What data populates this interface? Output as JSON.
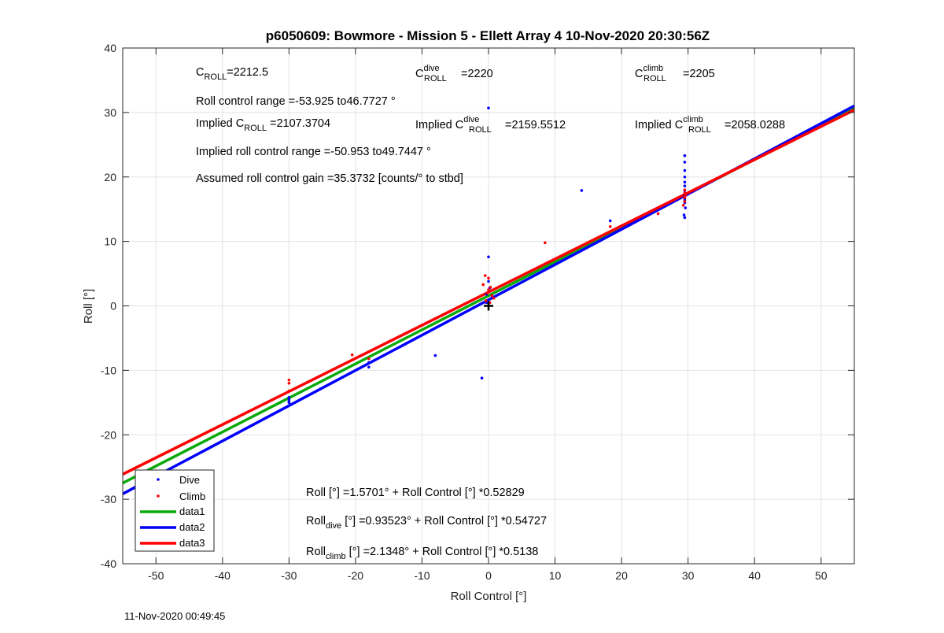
{
  "chart_data": {
    "type": "scatter",
    "title": "p6050609: Bowmore - Mission 5 - Ellett Array 4 10-Nov-2020 20:30:56Z",
    "xlabel": "Roll Control [°]",
    "ylabel": "Roll [°]",
    "xlim": [
      -55,
      55
    ],
    "ylim": [
      -40,
      40
    ],
    "xticks": [
      -50,
      -40,
      -30,
      -20,
      -10,
      0,
      10,
      20,
      30,
      40,
      50
    ],
    "yticks": [
      -40,
      -30,
      -20,
      -10,
      0,
      10,
      20,
      30,
      40
    ],
    "grid": true,
    "legend_position": "bottom-left",
    "series": [
      {
        "name": "Dive",
        "kind": "points",
        "color": "#0000ff",
        "x": [
          -30,
          -30,
          -30,
          -30,
          -18,
          -18,
          -8,
          0,
          -1,
          0,
          0,
          -0.3,
          -0.3,
          0.2,
          14,
          18.3,
          29.5,
          29.5,
          29.5,
          29.5,
          29.5,
          29.5,
          29.5,
          29.5,
          29.5,
          29.6,
          29.4,
          29.5,
          29.5,
          29.5,
          29.5
        ],
        "y": [
          -14.5,
          -14.8,
          -15.0,
          -14.2,
          -9.5,
          -8.8,
          -7.7,
          30.7,
          -11.2,
          7.6,
          3.8,
          0.5,
          1.8,
          2.8,
          17.9,
          13.2,
          23.3,
          22.3,
          20.0,
          19.2,
          18.6,
          17.9,
          17.3,
          16.6,
          16.0,
          15.2,
          14.1,
          13.7,
          17.0,
          16.3,
          21.0
        ]
      },
      {
        "name": "Climb",
        "kind": "points",
        "color": "#ff0000",
        "x": [
          -30,
          -30,
          -30,
          -20.5,
          -18,
          -0.5,
          0,
          -0.8,
          0.3,
          0,
          -0.2,
          0.5,
          0.8,
          -0.4,
          0.2,
          8.5,
          18.3,
          25.5,
          29.5,
          29.5,
          29.5,
          29.5,
          29.3,
          29.6
        ],
        "y": [
          -11.5,
          -12.0,
          -13.2,
          -7.6,
          -8.2,
          4.7,
          4.3,
          3.3,
          2.9,
          2.5,
          2.0,
          1.6,
          1.2,
          0.8,
          0.5,
          9.8,
          12.3,
          14.3,
          18.0,
          17.5,
          16.8,
          16.2,
          15.6,
          17.2
        ]
      },
      {
        "name": "data1",
        "kind": "line",
        "color": "#0aaa0a",
        "intercept": 1.5701,
        "slope": 0.52829
      },
      {
        "name": "data2",
        "kind": "line",
        "color": "#0000ff",
        "intercept": 0.93523,
        "slope": 0.54727
      },
      {
        "name": "data3",
        "kind": "line",
        "color": "#ff0000",
        "intercept": 2.1348,
        "slope": 0.5138
      }
    ],
    "marker": {
      "x": 0,
      "y": 0
    },
    "annotations": {
      "c_roll": {
        "base": "C",
        "sub": "ROLL",
        "value": "=2212.5"
      },
      "c_roll_dive": {
        "base": "C",
        "sup": "dive",
        "sub": "ROLL",
        "value": "=2220"
      },
      "c_roll_climb": {
        "base": "C",
        "sup": "climb",
        "sub": "ROLL",
        "value": "=2205"
      },
      "roll_control_range": "Roll control range =-53.925 to46.7727 °",
      "implied_c_roll": {
        "prefix": "Implied C",
        "sub": "ROLL",
        "value": "=2107.3704"
      },
      "implied_c_roll_dive": {
        "prefix": "Implied C",
        "sup": "dive",
        "sub": "ROLL",
        "value": "=2159.5512"
      },
      "implied_c_roll_climb": {
        "prefix": "Implied C",
        "sup": "climb",
        "sub": "ROLL",
        "value": "=2058.0288"
      },
      "implied_roll_control_range": "Implied roll control range =-50.953 to49.7447 °",
      "assumed_gain": "Assumed roll control gain =35.3732 [counts/° to stbd]",
      "fit_all": "Roll [°] =1.5701° + Roll Control [°] *0.52829",
      "fit_dive": {
        "prefix": "Roll",
        "sub": "dive",
        "rest": " [°] =0.93523° + Roll Control [°] *0.54727"
      },
      "fit_climb": {
        "prefix": "Roll",
        "sub": "climb",
        "rest": " [°] =2.1348° + Roll Control [°] *0.5138"
      }
    }
  },
  "timestamp": "11-Nov-2020 00:49:45"
}
